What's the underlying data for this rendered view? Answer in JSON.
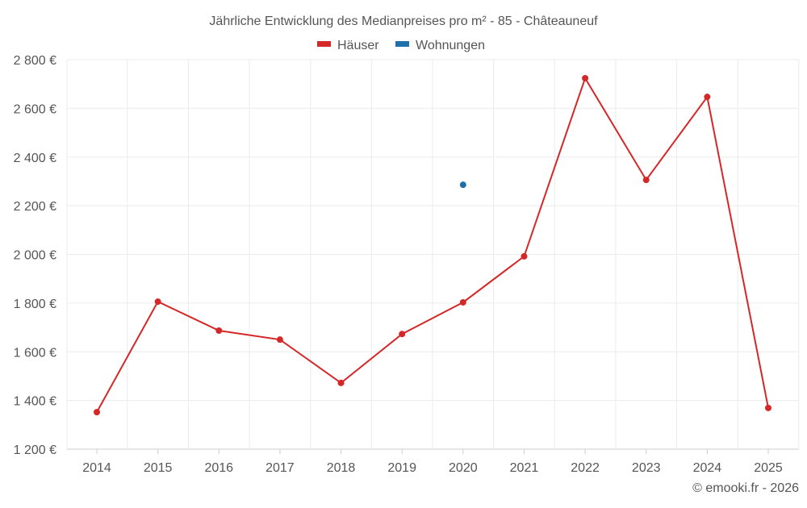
{
  "chart_data": {
    "type": "line",
    "title": "Jährliche Entwicklung des Medianpreises pro m² - 85 - Châteauneuf",
    "categories": [
      "2014",
      "2015",
      "2016",
      "2017",
      "2018",
      "2019",
      "2020",
      "2021",
      "2022",
      "2023",
      "2024",
      "2025"
    ],
    "series": [
      {
        "name": "Häuser",
        "color": "#d62728",
        "values": [
          1352,
          1806,
          1687,
          1650,
          1472,
          1673,
          1803,
          1992,
          2724,
          2306,
          2647,
          1369
        ]
      },
      {
        "name": "Wohnungen",
        "color": "#1f6fa8",
        "values": [
          null,
          null,
          null,
          null,
          null,
          null,
          2286,
          null,
          null,
          null,
          null,
          null
        ]
      }
    ],
    "ylim": [
      1200,
      2800
    ],
    "yticks": [
      1200,
      1400,
      1600,
      1800,
      2000,
      2200,
      2400,
      2600,
      2800
    ],
    "ytick_labels": [
      "1 200 €",
      "1 400 €",
      "1 600 €",
      "1 800 €",
      "2 000 €",
      "2 200 €",
      "2 400 €",
      "2 600 €",
      "2 800 €"
    ],
    "legend_position": "top-center",
    "grid": true,
    "credit": "© emooki.fr - 2026"
  }
}
